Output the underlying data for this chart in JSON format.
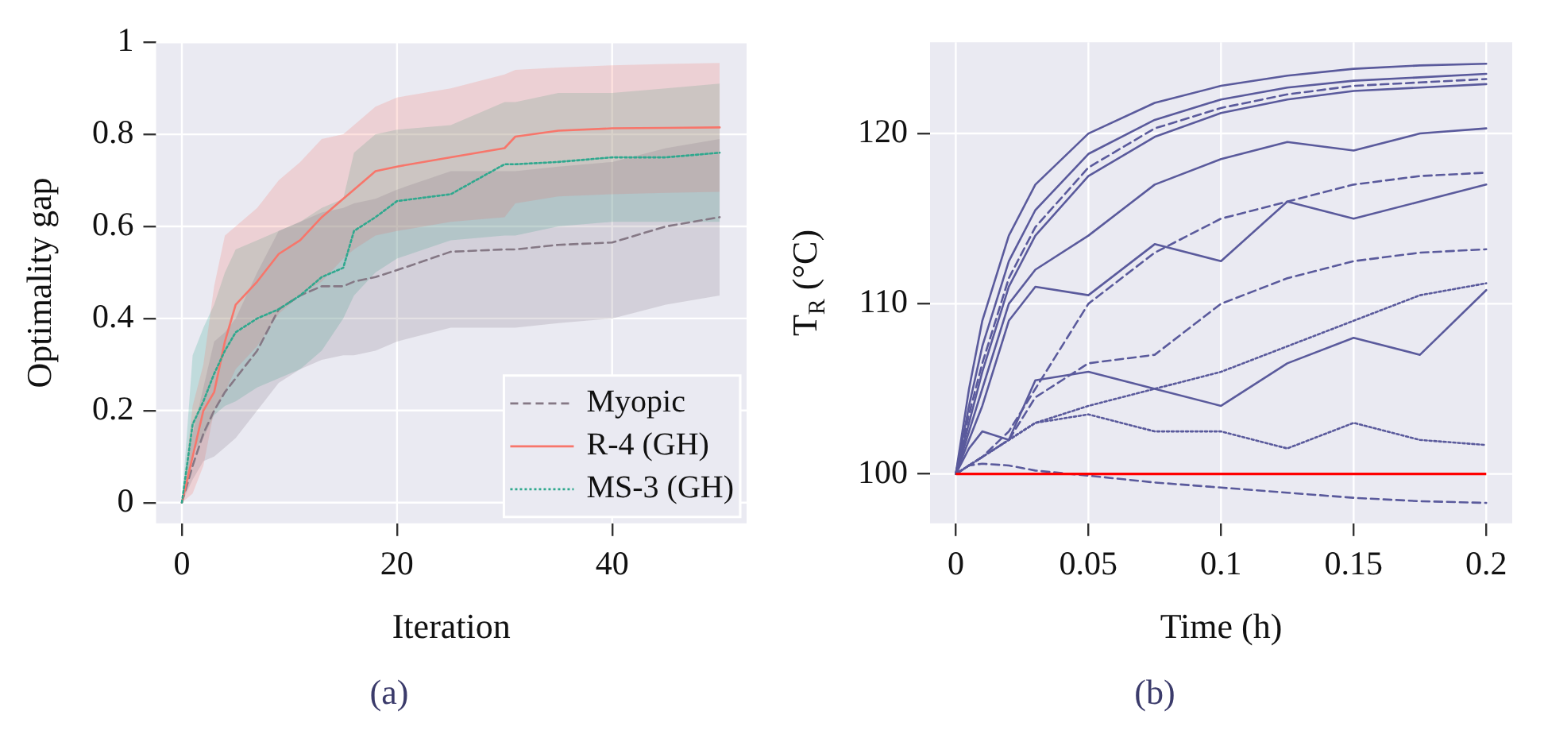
{
  "chart_data": [
    {
      "type": "line",
      "xlabel": "Iteration",
      "ylabel": "Optimality gap",
      "annotations": [
        "(a)"
      ],
      "x": [
        0,
        1,
        2,
        3,
        4,
        5,
        7,
        9,
        11,
        13,
        15,
        16,
        18,
        20,
        25,
        30,
        31,
        35,
        40,
        45,
        50
      ],
      "series": [
        {
          "name": "Myopic",
          "color": "#857885",
          "line_style": "dashed",
          "values": [
            0,
            0.08,
            0.15,
            0.2,
            0.24,
            0.27,
            0.33,
            0.42,
            0.45,
            0.47,
            0.47,
            0.48,
            0.49,
            0.505,
            0.545,
            0.55,
            0.55,
            0.56,
            0.565,
            0.6,
            0.62
          ],
          "lower": [
            0,
            0.05,
            0.09,
            0.1,
            0.12,
            0.14,
            0.2,
            0.26,
            0.29,
            0.31,
            0.32,
            0.32,
            0.33,
            0.35,
            0.38,
            0.38,
            0.38,
            0.39,
            0.4,
            0.43,
            0.45
          ],
          "upper": [
            0,
            0.15,
            0.25,
            0.35,
            0.37,
            0.4,
            0.5,
            0.59,
            0.61,
            0.63,
            0.64,
            0.65,
            0.66,
            0.68,
            0.72,
            0.72,
            0.72,
            0.73,
            0.74,
            0.77,
            0.79
          ]
        },
        {
          "name": "R-4 (GH)",
          "color": "#f7766b",
          "line_style": "solid",
          "values": [
            0,
            0.1,
            0.2,
            0.24,
            0.35,
            0.43,
            0.48,
            0.54,
            0.57,
            0.62,
            0.66,
            0.68,
            0.72,
            0.73,
            0.75,
            0.77,
            0.795,
            0.808,
            0.813,
            0.814,
            0.815
          ],
          "lower": [
            0,
            0.02,
            0.08,
            0.2,
            0.24,
            0.29,
            0.34,
            0.41,
            0.45,
            0.48,
            0.53,
            0.55,
            0.58,
            0.59,
            0.61,
            0.62,
            0.65,
            0.665,
            0.67,
            0.673,
            0.675
          ],
          "upper": [
            0,
            0.21,
            0.3,
            0.47,
            0.58,
            0.6,
            0.64,
            0.7,
            0.74,
            0.79,
            0.8,
            0.82,
            0.86,
            0.88,
            0.9,
            0.93,
            0.94,
            0.945,
            0.95,
            0.953,
            0.955
          ]
        },
        {
          "name": "MS-3 (GH)",
          "color": "#2fa88e",
          "line_style": "dotted",
          "values": [
            0,
            0.17,
            0.22,
            0.28,
            0.33,
            0.37,
            0.4,
            0.42,
            0.45,
            0.49,
            0.51,
            0.59,
            0.62,
            0.655,
            0.67,
            0.735,
            0.735,
            0.74,
            0.75,
            0.75,
            0.76
          ],
          "lower": [
            0,
            0.11,
            0.14,
            0.19,
            0.21,
            0.22,
            0.25,
            0.27,
            0.29,
            0.33,
            0.4,
            0.45,
            0.5,
            0.53,
            0.57,
            0.58,
            0.58,
            0.6,
            0.61,
            0.61,
            0.61
          ],
          "upper": [
            0,
            0.32,
            0.38,
            0.43,
            0.5,
            0.55,
            0.57,
            0.59,
            0.61,
            0.64,
            0.66,
            0.76,
            0.8,
            0.81,
            0.82,
            0.87,
            0.87,
            0.89,
            0.89,
            0.9,
            0.91
          ]
        }
      ],
      "xlim": [
        -2.4,
        52.5
      ],
      "ylim": [
        -0.045,
        1
      ],
      "xticks": [
        0,
        20,
        40
      ],
      "yticks": [
        0,
        0.2,
        0.4,
        0.6,
        0.8,
        1
      ],
      "grid": true,
      "legend": "bottom right"
    },
    {
      "type": "line",
      "xlabel": "Time (h)",
      "ylabel": "T$_{R}$ (°C)",
      "annotations": [
        "(b)"
      ],
      "x": [
        0,
        0.005,
        0.01,
        0.02,
        0.03,
        0.05,
        0.075,
        0.1,
        0.125,
        0.15,
        0.175,
        0.2
      ],
      "series": [
        {
          "color": "#5a5a9c",
          "line_style": "solid",
          "values": [
            100,
            105,
            109,
            114,
            117,
            120,
            121.8,
            122.8,
            123.4,
            123.8,
            124,
            124.1
          ]
        },
        {
          "color": "#5a5a9c",
          "line_style": "solid",
          "values": [
            100,
            104,
            107.5,
            112.5,
            115.5,
            118.8,
            120.8,
            122,
            122.7,
            123.1,
            123.3,
            123.5
          ]
        },
        {
          "color": "#5a5a9c",
          "line_style": "solid",
          "values": [
            100,
            103,
            106,
            111,
            114,
            117.5,
            119.8,
            121.2,
            122,
            122.5,
            122.7,
            122.9
          ]
        },
        {
          "color": "#5a5a9c",
          "line_style": "dashed",
          "values": [
            100,
            103.5,
            106.5,
            111.5,
            114.5,
            118,
            120.3,
            121.5,
            122.3,
            122.8,
            123,
            123.2
          ]
        },
        {
          "color": "#5a5a9c",
          "line_style": "solid",
          "values": [
            100,
            102.5,
            105,
            110,
            112,
            114,
            117,
            118.5,
            119.5,
            119,
            120,
            120.3
          ]
        },
        {
          "color": "#5a5a9c",
          "line_style": "solid",
          "values": [
            100,
            102,
            104,
            109,
            111,
            110.5,
            113.5,
            112.5,
            116,
            115,
            116,
            117
          ]
        },
        {
          "color": "#5a5a9c",
          "line_style": "dashed",
          "values": [
            100,
            100.5,
            101,
            102.5,
            105,
            110,
            113,
            115,
            116,
            117,
            117.5,
            117.7
          ]
        },
        {
          "color": "#5a5a9c",
          "line_style": "dashed",
          "values": [
            100,
            100.5,
            101,
            102,
            104.5,
            106.5,
            107,
            110,
            111.5,
            112.5,
            113,
            113.2
          ]
        },
        {
          "color": "#5a5a9c",
          "line_style": "solid",
          "values": [
            100,
            101.5,
            102.5,
            102,
            105.5,
            106,
            105,
            104,
            106.5,
            108,
            107,
            110.8
          ]
        },
        {
          "color": "#5a5a9c",
          "line_style": "dotted",
          "values": [
            100,
            100.5,
            101,
            102,
            103,
            104,
            105,
            106,
            107.5,
            109,
            110.5,
            111.2
          ]
        },
        {
          "color": "#5a5a9c",
          "line_style": "dotted",
          "values": [
            100,
            100.5,
            101,
            102,
            103,
            103.5,
            102.5,
            102.5,
            101.5,
            103,
            102,
            101.7
          ]
        },
        {
          "color": "#5a5a9c",
          "line_style": "dashed",
          "values": [
            100,
            100.5,
            100.6,
            100.5,
            100.2,
            99.9,
            99.5,
            99.2,
            98.9,
            98.6,
            98.4,
            98.3
          ]
        }
      ],
      "ref_lines": [
        {
          "axis": "y",
          "value": 100,
          "color": "#ff0000"
        }
      ],
      "xlim": [
        -0.0097,
        0.2098
      ],
      "ylim": [
        97.1,
        125.36
      ],
      "xticks": [
        0,
        0.05,
        0.1,
        0.15,
        0.2
      ],
      "yticks": [
        100,
        110,
        120
      ],
      "grid": true
    }
  ]
}
